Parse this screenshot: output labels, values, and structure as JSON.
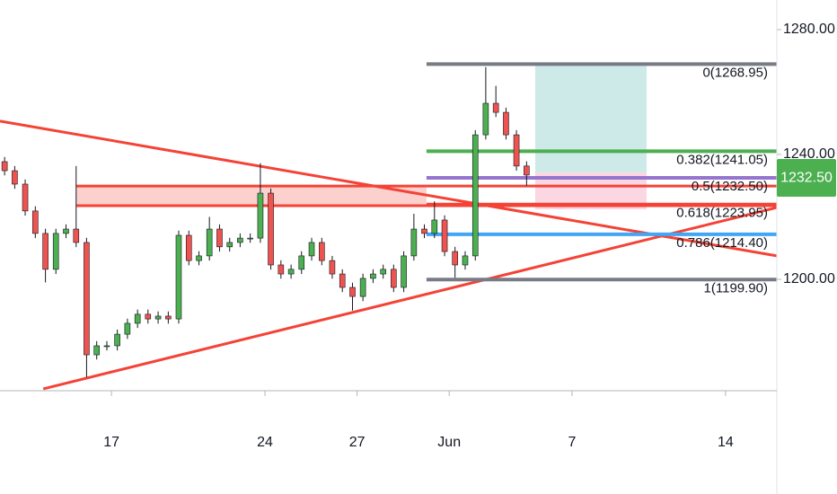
{
  "chart_data": {
    "type": "candlestick",
    "x": [
      -3.48,
      -3.15,
      -2.81,
      -2.48,
      -2.15,
      -1.81,
      -1.48,
      -1.15,
      -0.81,
      -0.48,
      -0.15,
      0.19,
      0.52,
      0.85,
      1.19,
      1.52,
      1.85,
      2.19,
      2.52,
      2.85,
      3.19,
      3.52,
      3.85,
      4.19,
      4.52,
      4.85,
      5.19,
      5.52,
      5.85,
      6.19,
      6.52,
      6.85,
      7.19,
      7.52,
      7.85,
      8.19,
      8.52,
      8.85,
      9.19,
      9.52,
      9.85,
      10.19,
      10.52,
      10.85,
      11.19,
      11.52,
      11.85,
      12.19,
      12.52,
      12.85,
      13.19,
      13.52
    ],
    "open": [
      1237.7,
      1234.8,
      1230.5,
      1221.9,
      1214.7,
      1203.2,
      1214.7,
      1216.1,
      1211.8,
      1175.8,
      1178.7,
      1178.7,
      1182.4,
      1185.9,
      1188.8,
      1187.3,
      1188.2,
      1187.3,
      1214.1,
      1206.0,
      1207.5,
      1216.1,
      1210.4,
      1211.8,
      1213.2,
      1213.2,
      1227.6,
      1204.6,
      1201.7,
      1203.2,
      1207.5,
      1211.8,
      1206.0,
      1201.7,
      1197.4,
      1194.5,
      1200.3,
      1201.7,
      1203.2,
      1197.4,
      1207.5,
      1216.1,
      1214.7,
      1219.0,
      1208.9,
      1204.6,
      1207.5,
      1246.3,
      1256.4,
      1253.5,
      1246.3,
      1236.3
    ],
    "high": [
      1239.2,
      1236.3,
      1232.0,
      1223.4,
      1216.2,
      1216.2,
      1217.6,
      1236.3,
      1213.3,
      1180.2,
      1180.2,
      1183.9,
      1187.4,
      1190.3,
      1190.3,
      1189.7,
      1189.7,
      1215.6,
      1215.6,
      1209.0,
      1220.0,
      1217.6,
      1213.3,
      1214.7,
      1214.7,
      1237.2,
      1229.1,
      1206.1,
      1204.7,
      1209.0,
      1213.3,
      1213.3,
      1207.5,
      1203.2,
      1198.9,
      1201.8,
      1203.2,
      1204.7,
      1204.7,
      1209.0,
      1221.0,
      1217.6,
      1225.0,
      1220.5,
      1210.4,
      1209.0,
      1247.8,
      1268.0,
      1262.0,
      1255.0,
      1247.8,
      1237.8
    ],
    "low": [
      1233.3,
      1229.0,
      1220.4,
      1213.2,
      1199.0,
      1201.7,
      1213.2,
      1210.3,
      1168.6,
      1174.3,
      1177.2,
      1177.2,
      1180.9,
      1184.4,
      1185.8,
      1185.8,
      1185.8,
      1185.8,
      1204.5,
      1204.5,
      1206.0,
      1208.9,
      1208.9,
      1210.3,
      1211.7,
      1211.7,
      1203.1,
      1200.2,
      1200.2,
      1201.7,
      1206.0,
      1204.5,
      1200.2,
      1195.9,
      1190.0,
      1193.0,
      1198.8,
      1200.2,
      1195.9,
      1195.9,
      1206.0,
      1213.2,
      1213.2,
      1207.4,
      1200.5,
      1203.1,
      1206.0,
      1244.8,
      1252.0,
      1244.8,
      1234.8,
      1230.0
    ],
    "close": [
      1234.8,
      1230.5,
      1221.9,
      1214.7,
      1203.2,
      1214.7,
      1216.1,
      1211.8,
      1175.8,
      1178.7,
      1178.7,
      1182.4,
      1185.9,
      1188.8,
      1187.3,
      1188.2,
      1187.3,
      1214.1,
      1206.0,
      1207.5,
      1216.1,
      1210.4,
      1211.8,
      1213.2,
      1213.2,
      1227.6,
      1204.6,
      1201.7,
      1203.2,
      1207.5,
      1211.8,
      1206.0,
      1201.7,
      1197.4,
      1194.5,
      1200.3,
      1201.7,
      1203.2,
      1197.4,
      1207.5,
      1216.1,
      1214.7,
      1219.0,
      1208.9,
      1204.6,
      1207.5,
      1246.3,
      1256.4,
      1253.5,
      1246.3,
      1236.3,
      1233.4
    ],
    "up_color": "#4caf50",
    "down_color": "#ef5350",
    "xlim": [
      -3.63,
      21.67
    ],
    "ylim": [
      1164.3,
      1289.5
    ],
    "xticks": [
      {
        "value": 0,
        "label": "17"
      },
      {
        "value": 5,
        "label": "24"
      },
      {
        "value": 8,
        "label": "27"
      },
      {
        "value": 11,
        "label": "Jun"
      },
      {
        "value": 15,
        "label": "7"
      },
      {
        "value": 20,
        "label": "14"
      }
    ],
    "yticks": [
      {
        "value": 1280,
        "label": "1280.00"
      },
      {
        "value": 1240,
        "label": "1240.00"
      },
      {
        "value": 1200,
        "label": "1200.00"
      }
    ],
    "last_price": {
      "value": 1232.5,
      "label": "1232.50",
      "color": "#4caf50"
    },
    "zone": {
      "x": [
        -1.14,
        10.26
      ],
      "y": [
        1223.6,
        1229.9
      ],
      "color": "#f44336"
    },
    "trend_lines": [
      {
        "color": "#f44336",
        "x": [
          -3.63,
          21.67
        ],
        "y": [
          1250.7,
          1207.5
        ]
      },
      {
        "color": "#f44336",
        "x": [
          -2.22,
          21.67
        ],
        "y": [
          1164.9,
          1223.0
        ]
      }
    ],
    "position": {
      "x": [
        13.8,
        17.43
      ],
      "target": 1268.5,
      "entry": 1234.3,
      "stop": 1222.4,
      "profit_color": "#b2dfdb",
      "loss_color": "#f8bbd0"
    },
    "fib": {
      "x_start": 10.26,
      "levels": [
        {
          "label": "0(1268.95)",
          "value": 1268.95,
          "color": "#787b86"
        },
        {
          "label": "0.382(1241.05)",
          "value": 1241.05,
          "color": "#4caf50"
        },
        {
          "label": "0.5(1232.50)",
          "value": 1232.5,
          "color": "#9575cd"
        },
        {
          "label": "0.618(1223.95)",
          "value": 1223.95,
          "color": "#f44336"
        },
        {
          "label": "0.786(1214.40)",
          "value": 1214.4,
          "color": "#42a5f5"
        },
        {
          "label": "1(1199.90)",
          "value": 1199.9,
          "color": "#787b86"
        }
      ]
    }
  }
}
